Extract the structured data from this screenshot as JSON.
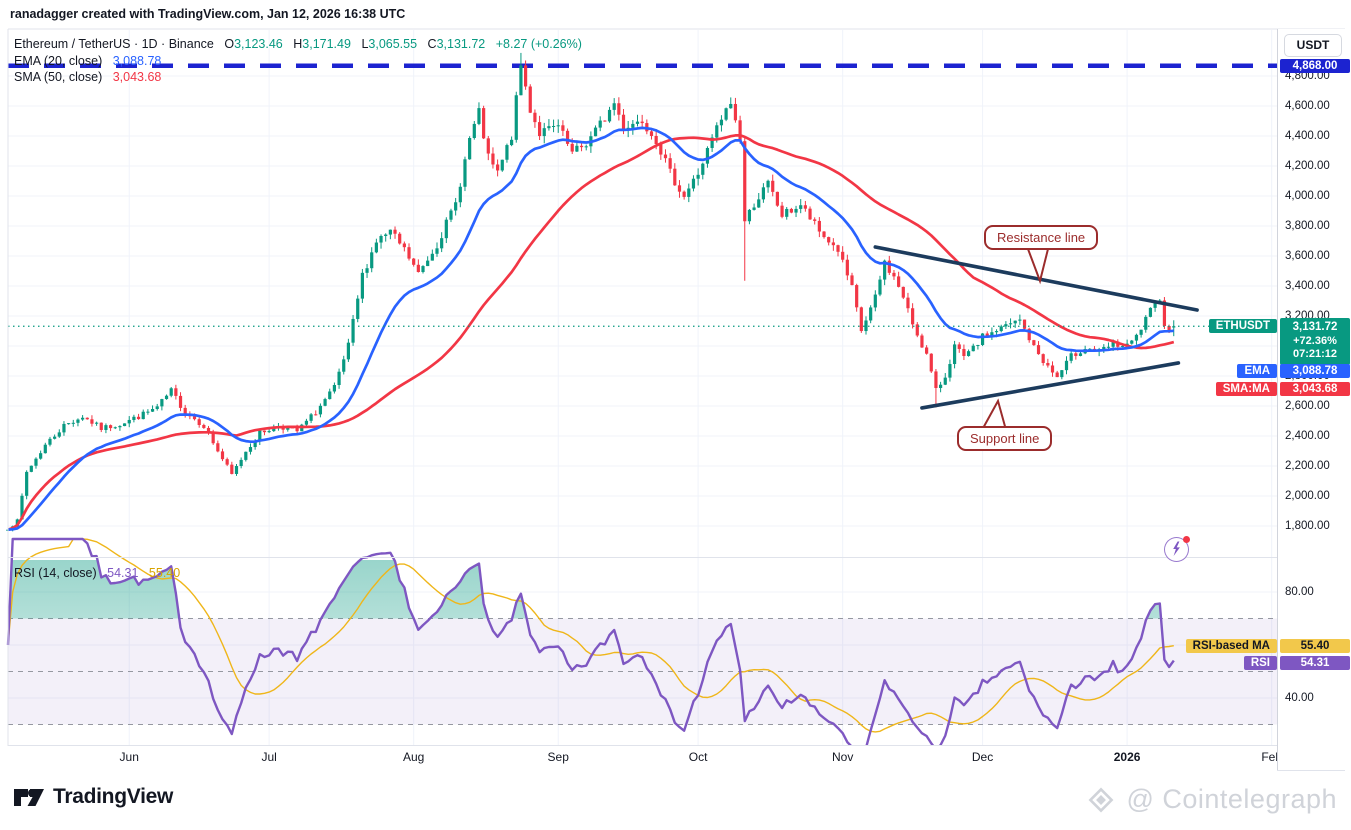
{
  "watermark_top": "ranadagger created with TradingView.com, Jan 12, 2026 16:38 UTC",
  "header": {
    "symbol_line": "Ethereum / TetherUS · 1D · Binance",
    "ohlc": {
      "o_label": "O",
      "o": "3,123.46",
      "h_label": "H",
      "h": "3,171.49",
      "l_label": "L",
      "l": "3,065.55",
      "c_label": "C",
      "c": "3,131.72",
      "change": "+8.27 (+0.26%)"
    },
    "ema_label": "EMA (20, close)",
    "ema_value": "3,088.78",
    "sma_label": "SMA (50, close)",
    "sma_value": "3,043.68"
  },
  "price_axis": {
    "currency_button": "USDT",
    "ath_pill": "4,868.00",
    "pills": {
      "symbol_tag": "ETHUSDT",
      "price": "3,131.72",
      "change_pct": "+72.36%",
      "countdown": "07:21:12",
      "ema_tag": "EMA",
      "ema_value": "3,088.78",
      "sma_tag": "SMA:MA",
      "sma_value": "3,043.68"
    }
  },
  "annotations": {
    "resistance": "Resistance line",
    "support": "Support line"
  },
  "rsi_panel": {
    "legend": "RSI (14, close)",
    "rsi_value": "54.31",
    "ma_value": "55.40",
    "ma_tag": "RSI-based MA",
    "ma_pill": "55.40",
    "rsi_tag": "RSI",
    "rsi_pill": "54.31"
  },
  "footer": {
    "tradingview": "TradingView",
    "attribution": "@ Cointelegraph"
  },
  "colors": {
    "up": "#089981",
    "down": "#F23645",
    "ema": "#2962FF",
    "sma": "#F23645",
    "ath_line": "#1C23D0",
    "current_dotted": "#089981",
    "trendline": "#1C3B5D",
    "callout": "#9B2C2C",
    "rsi": "#7E57C2",
    "rsi_ma": "#EFB61A",
    "rsi_band": "rgba(126,87,194,0.09)",
    "grid": "#F0F3FA",
    "separator": "#E0E3EB",
    "axis_text": "#131722",
    "overbought_fill": "#089981"
  },
  "chart_data": {
    "type": "candlestick",
    "title": "Ethereum / TetherUS, 1D, Binance",
    "x_axis_span": "May 2025 - Feb 2026, daily candles",
    "days_total": 251,
    "price_gridlines": [
      4800,
      4600,
      4400,
      4200,
      4000,
      3800,
      3600,
      3400,
      3200,
      3000,
      2800,
      2600,
      2400,
      2200,
      2000,
      1800
    ],
    "ath_level": 4868.0,
    "current_price": 3131.72,
    "ema20_last": 3088.78,
    "sma50_last": 3043.68,
    "last_candle": {
      "open": 3123.46,
      "high": 3171.49,
      "low": 3065.55,
      "close": 3131.72
    },
    "close_path_anchors": [
      [
        0,
        1790
      ],
      [
        2,
        1830
      ],
      [
        4,
        2160
      ],
      [
        8,
        2340
      ],
      [
        12,
        2470
      ],
      [
        16,
        2530
      ],
      [
        20,
        2450
      ],
      [
        24,
        2480
      ],
      [
        28,
        2530
      ],
      [
        32,
        2590
      ],
      [
        35,
        2700
      ],
      [
        38,
        2560
      ],
      [
        42,
        2470
      ],
      [
        45,
        2300
      ],
      [
        48,
        2140
      ],
      [
        51,
        2300
      ],
      [
        54,
        2420
      ],
      [
        58,
        2470
      ],
      [
        62,
        2430
      ],
      [
        66,
        2560
      ],
      [
        70,
        2720
      ],
      [
        73,
        3000
      ],
      [
        76,
        3470
      ],
      [
        79,
        3700
      ],
      [
        82,
        3760
      ],
      [
        85,
        3640
      ],
      [
        88,
        3480
      ],
      [
        92,
        3680
      ],
      [
        96,
        3950
      ],
      [
        99,
        4380
      ],
      [
        101,
        4550
      ],
      [
        103,
        4250
      ],
      [
        105,
        4150
      ],
      [
        108,
        4400
      ],
      [
        110,
        4870
      ],
      [
        112,
        4580
      ],
      [
        114,
        4420
      ],
      [
        118,
        4460
      ],
      [
        121,
        4280
      ],
      [
        124,
        4350
      ],
      [
        128,
        4520
      ],
      [
        130,
        4620
      ],
      [
        132,
        4460
      ],
      [
        136,
        4510
      ],
      [
        139,
        4380
      ],
      [
        142,
        4150
      ],
      [
        145,
        4000
      ],
      [
        148,
        4150
      ],
      [
        152,
        4450
      ],
      [
        155,
        4620
      ],
      [
        157,
        4380
      ],
      [
        158,
        3830
      ],
      [
        160,
        3950
      ],
      [
        163,
        4080
      ],
      [
        166,
        3870
      ],
      [
        170,
        3940
      ],
      [
        174,
        3760
      ],
      [
        178,
        3640
      ],
      [
        181,
        3380
      ],
      [
        183,
        3100
      ],
      [
        186,
        3320
      ],
      [
        188,
        3560
      ],
      [
        191,
        3400
      ],
      [
        194,
        3150
      ],
      [
        197,
        2940
      ],
      [
        199,
        2700
      ],
      [
        201,
        2800
      ],
      [
        203,
        3000
      ],
      [
        205,
        2920
      ],
      [
        207,
        2980
      ],
      [
        209,
        3060
      ],
      [
        213,
        3120
      ],
      [
        217,
        3170
      ],
      [
        220,
        2990
      ],
      [
        223,
        2860
      ],
      [
        225,
        2790
      ],
      [
        228,
        2930
      ],
      [
        231,
        2990
      ],
      [
        234,
        2960
      ],
      [
        237,
        3010
      ],
      [
        240,
        2995
      ],
      [
        242,
        3060
      ],
      [
        245,
        3230
      ],
      [
        247,
        3330
      ],
      [
        248,
        3150
      ],
      [
        249,
        3090
      ],
      [
        250,
        3131.72
      ]
    ],
    "wick_spikes": {
      "110": {
        "high": 4954
      },
      "158": {
        "low": 3435
      },
      "199": {
        "low": 2590
      }
    },
    "trendlines": {
      "resistance": {
        "d1": 186,
        "p1": 3660,
        "d2": 255,
        "p2": 3240
      },
      "support": {
        "d1": 196,
        "p1": 2587,
        "d2": 251,
        "p2": 2887
      }
    },
    "month_ticks": [
      {
        "label": "Jun",
        "day": 26
      },
      {
        "label": "Jul",
        "day": 56
      },
      {
        "label": "Aug",
        "day": 87
      },
      {
        "label": "Sep",
        "day": 118
      },
      {
        "label": "Oct",
        "day": 148
      },
      {
        "label": "Nov",
        "day": 179
      },
      {
        "label": "Dec",
        "day": 209
      },
      {
        "label": "2026",
        "day": 240,
        "bold": true
      },
      {
        "label": "Feb",
        "day": 271
      }
    ],
    "rsi": {
      "period": 14,
      "last": 54.31,
      "ma_last": 55.4,
      "dashed_levels": [
        70,
        50,
        30
      ],
      "gridlines": [
        80,
        60,
        40
      ],
      "axis_ticks": [
        80,
        40
      ]
    }
  }
}
